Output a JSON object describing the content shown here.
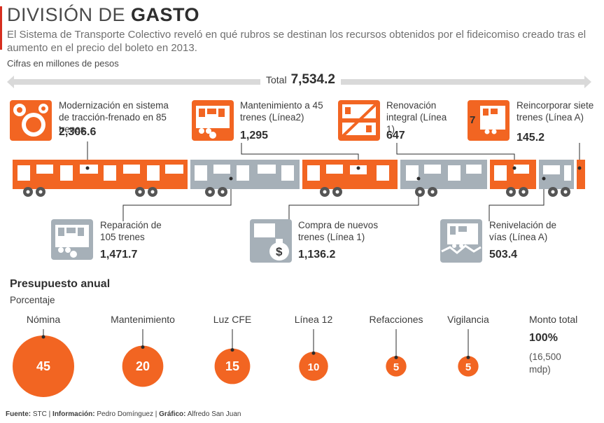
{
  "header": {
    "title_light": "DIVISIÓN DE",
    "title_bold": "GASTO",
    "subtitle": "El Sistema de Transporte Colectivo reveló en qué rubros se destinan los recursos obtenidos por el fideicomiso creado tras el aumento en el precio del boleto en 2013.",
    "units": "Cifras en millones de pesos"
  },
  "total": {
    "label": "Total",
    "value": "7,534.2"
  },
  "colors": {
    "orange": "#f26522",
    "gray": "#a6b0b8",
    "dark": "#3a3a3a",
    "accent_red": "#d62e1f"
  },
  "rubros_top": [
    {
      "label": "Modernización en sistema de tracción-frenado en 85 trenes",
      "value": "2,306.6",
      "icon": "gears-icon"
    },
    {
      "label": "Mantenimiento a 45 trenes (Línea2)",
      "value": "1,295",
      "icon": "maintenance-train-icon"
    },
    {
      "label": "Renovación integral (Línea 1)",
      "value": "647",
      "icon": "renovation-train-icon"
    },
    {
      "label": "Reincorporar siete trenes (Línea A)",
      "value": "145.2",
      "icon": "seven-trains-icon",
      "badge": "7"
    }
  ],
  "rubros_bottom": [
    {
      "label": "Reparación de 105 trenes",
      "value": "1,471.7",
      "icon": "repair-train-icon"
    },
    {
      "label": "Compra de nuevos trenes (Línea 1)",
      "value": "1,136.2",
      "icon": "money-bag-icon",
      "symbol": "$"
    },
    {
      "label": "Renivelación de vías (Línea A)",
      "value": "503.4",
      "icon": "track-leveling-icon"
    }
  ],
  "budget": {
    "title": "Presupuesto anual",
    "subtitle": "Porcentaje",
    "total_label": "Monto total",
    "total_pct": "100%",
    "total_amount": "(16,500 mdp)"
  },
  "chart_data": {
    "type": "bubble",
    "title": "Presupuesto anual",
    "subtitle": "Porcentaje",
    "categories": [
      "Nómina",
      "Mantenimiento",
      "Luz CFE",
      "Línea 12",
      "Refacciones",
      "Vigilancia"
    ],
    "values": [
      45,
      20,
      15,
      10,
      5,
      5
    ],
    "labels": [
      "45",
      "20",
      "15",
      "10",
      "5",
      "5"
    ],
    "color": "#f26522"
  },
  "footer": {
    "source_label": "Fuente:",
    "source": "STC",
    "info_label": "Información:",
    "info": "Pedro Domínguez",
    "graphic_label": "Gráfico:",
    "graphic": "Alfredo San Juan"
  }
}
